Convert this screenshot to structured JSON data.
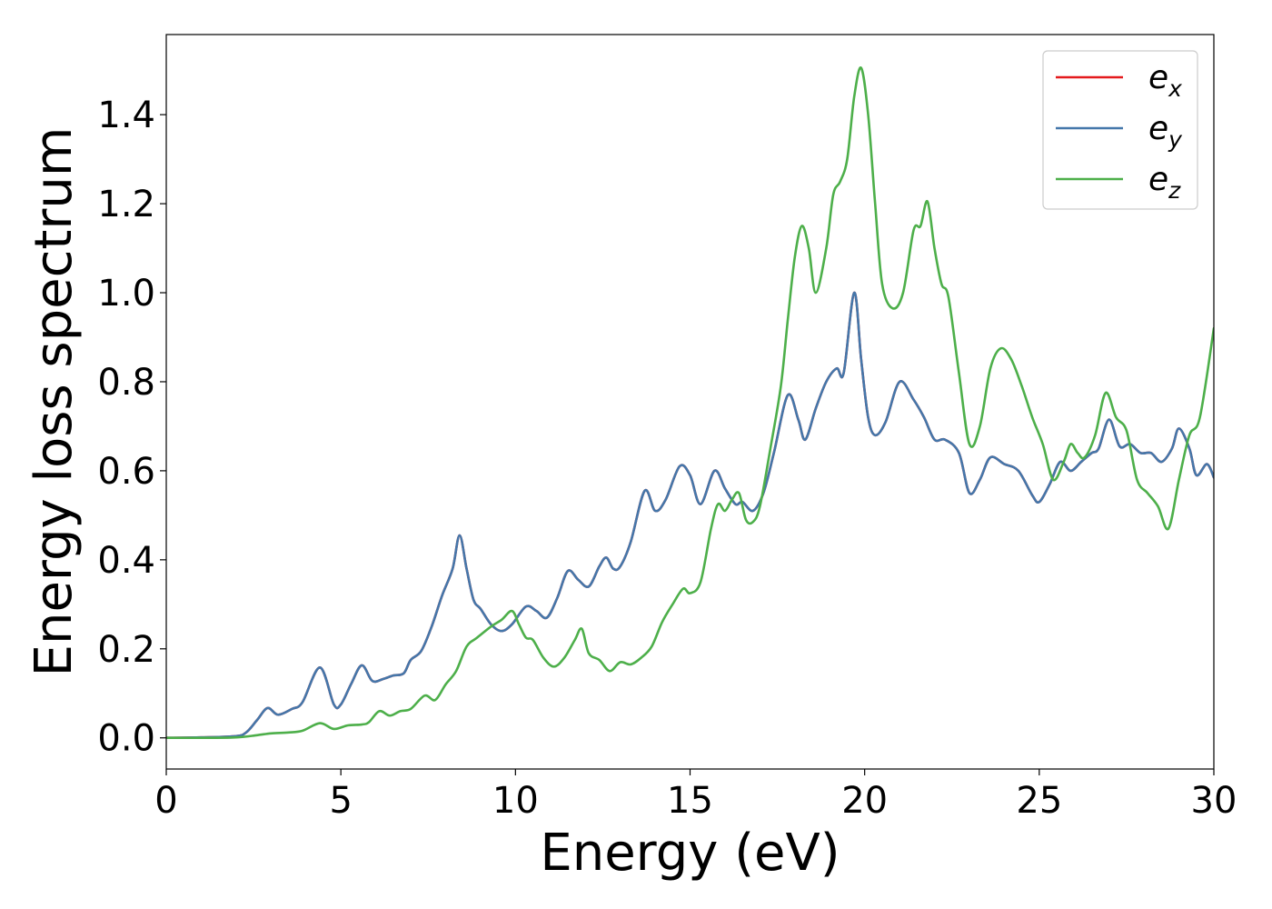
{
  "chart_data": {
    "type": "line",
    "title": "",
    "xlabel": "Energy (eV)",
    "ylabel": "Energy loss spectrum",
    "xlim": [
      0,
      30
    ],
    "ylim": [
      -0.07,
      1.58
    ],
    "xticks": [
      0,
      5,
      10,
      15,
      20,
      25,
      30
    ],
    "xtick_labels": [
      "0",
      "5",
      "10",
      "15",
      "20",
      "25",
      "30"
    ],
    "yticks": [
      0.0,
      0.2,
      0.4,
      0.6,
      0.8,
      1.0,
      1.2,
      1.4
    ],
    "ytick_labels": [
      "0.0",
      "0.2",
      "0.4",
      "0.6",
      "0.8",
      "1.0",
      "1.2",
      "1.4"
    ],
    "grid": false,
    "legend_position": "top-right",
    "series": [
      {
        "name": "e_x",
        "legend_base": "e",
        "legend_sub": "x",
        "color": "#e41a1c",
        "x": [
          0,
          1,
          2,
          2.3,
          2.6,
          2.9,
          3.2,
          3.6,
          3.9,
          4.4,
          4.8,
          5.0,
          5.3,
          5.6,
          5.9,
          6.2,
          6.5,
          6.8,
          7.0,
          7.3,
          7.6,
          7.9,
          8.2,
          8.4,
          8.6,
          8.8,
          9.0,
          9.3,
          9.6,
          9.9,
          10.3,
          10.6,
          10.9,
          11.2,
          11.5,
          11.8,
          12.1,
          12.4,
          12.6,
          12.8,
          13.0,
          13.3,
          13.7,
          14.0,
          14.3,
          14.7,
          15.0,
          15.3,
          15.7,
          16.0,
          16.3,
          16.5,
          16.8,
          17.1,
          17.4,
          17.8,
          18.1,
          18.3,
          18.6,
          18.9,
          19.2,
          19.4,
          19.7,
          19.9,
          20.1,
          20.3,
          20.6,
          21.0,
          21.4,
          21.7,
          22.0,
          22.3,
          22.7,
          23.0,
          23.3,
          23.6,
          24.0,
          24.4,
          24.8,
          25.0,
          25.3,
          25.6,
          25.9,
          26.2,
          26.5,
          26.7,
          27.0,
          27.3,
          27.6,
          27.9,
          28.2,
          28.5,
          28.8,
          29.0,
          29.3,
          29.5,
          29.8,
          30.0
        ],
        "y": [
          0.0,
          0.001,
          0.004,
          0.013,
          0.04,
          0.067,
          0.052,
          0.065,
          0.08,
          0.158,
          0.075,
          0.075,
          0.122,
          0.163,
          0.128,
          0.132,
          0.14,
          0.145,
          0.175,
          0.195,
          0.25,
          0.32,
          0.38,
          0.455,
          0.38,
          0.31,
          0.29,
          0.255,
          0.24,
          0.255,
          0.295,
          0.285,
          0.27,
          0.315,
          0.375,
          0.355,
          0.34,
          0.385,
          0.405,
          0.38,
          0.385,
          0.44,
          0.555,
          0.51,
          0.535,
          0.61,
          0.59,
          0.525,
          0.6,
          0.56,
          0.525,
          0.53,
          0.51,
          0.55,
          0.64,
          0.77,
          0.715,
          0.67,
          0.74,
          0.8,
          0.83,
          0.82,
          1.0,
          0.85,
          0.72,
          0.68,
          0.71,
          0.8,
          0.76,
          0.72,
          0.67,
          0.67,
          0.64,
          0.55,
          0.58,
          0.63,
          0.615,
          0.6,
          0.545,
          0.53,
          0.57,
          0.62,
          0.6,
          0.62,
          0.64,
          0.65,
          0.715,
          0.655,
          0.66,
          0.64,
          0.64,
          0.62,
          0.65,
          0.695,
          0.65,
          0.59,
          0.615,
          0.585
        ]
      },
      {
        "name": "e_y",
        "legend_base": "e",
        "legend_sub": "y",
        "color": "#4477aa",
        "x": [
          0,
          1,
          2,
          2.3,
          2.6,
          2.9,
          3.2,
          3.6,
          3.9,
          4.4,
          4.8,
          5.0,
          5.3,
          5.6,
          5.9,
          6.2,
          6.5,
          6.8,
          7.0,
          7.3,
          7.6,
          7.9,
          8.2,
          8.4,
          8.6,
          8.8,
          9.0,
          9.3,
          9.6,
          9.9,
          10.3,
          10.6,
          10.9,
          11.2,
          11.5,
          11.8,
          12.1,
          12.4,
          12.6,
          12.8,
          13.0,
          13.3,
          13.7,
          14.0,
          14.3,
          14.7,
          15.0,
          15.3,
          15.7,
          16.0,
          16.3,
          16.5,
          16.8,
          17.1,
          17.4,
          17.8,
          18.1,
          18.3,
          18.6,
          18.9,
          19.2,
          19.4,
          19.7,
          19.9,
          20.1,
          20.3,
          20.6,
          21.0,
          21.4,
          21.7,
          22.0,
          22.3,
          22.7,
          23.0,
          23.3,
          23.6,
          24.0,
          24.4,
          24.8,
          25.0,
          25.3,
          25.6,
          25.9,
          26.2,
          26.5,
          26.7,
          27.0,
          27.3,
          27.6,
          27.9,
          28.2,
          28.5,
          28.8,
          29.0,
          29.3,
          29.5,
          29.8,
          30.0
        ],
        "y": [
          0.0,
          0.001,
          0.004,
          0.013,
          0.04,
          0.067,
          0.052,
          0.065,
          0.08,
          0.158,
          0.075,
          0.075,
          0.122,
          0.163,
          0.128,
          0.132,
          0.14,
          0.145,
          0.175,
          0.195,
          0.25,
          0.32,
          0.38,
          0.455,
          0.38,
          0.31,
          0.29,
          0.255,
          0.24,
          0.255,
          0.295,
          0.285,
          0.27,
          0.315,
          0.375,
          0.355,
          0.34,
          0.385,
          0.405,
          0.38,
          0.385,
          0.44,
          0.555,
          0.51,
          0.535,
          0.61,
          0.59,
          0.525,
          0.6,
          0.56,
          0.525,
          0.53,
          0.51,
          0.55,
          0.64,
          0.77,
          0.715,
          0.67,
          0.74,
          0.8,
          0.83,
          0.82,
          1.0,
          0.85,
          0.72,
          0.68,
          0.71,
          0.8,
          0.76,
          0.72,
          0.67,
          0.67,
          0.64,
          0.55,
          0.58,
          0.63,
          0.615,
          0.6,
          0.545,
          0.53,
          0.57,
          0.62,
          0.6,
          0.62,
          0.64,
          0.65,
          0.715,
          0.655,
          0.66,
          0.64,
          0.64,
          0.62,
          0.65,
          0.695,
          0.65,
          0.59,
          0.615,
          0.585
        ]
      },
      {
        "name": "e_z",
        "legend_base": "e",
        "legend_sub": "z",
        "color": "#4daf4a",
        "x": [
          0,
          1,
          2,
          2.6,
          3.0,
          3.5,
          3.9,
          4.4,
          4.8,
          5.2,
          5.6,
          5.8,
          6.1,
          6.4,
          6.7,
          7.0,
          7.4,
          7.7,
          8.0,
          8.3,
          8.6,
          8.9,
          9.3,
          9.6,
          9.9,
          10.1,
          10.3,
          10.5,
          10.8,
          11.1,
          11.4,
          11.7,
          11.9,
          12.1,
          12.4,
          12.7,
          13.0,
          13.3,
          13.6,
          13.9,
          14.2,
          14.5,
          14.8,
          15.0,
          15.3,
          15.6,
          15.8,
          16.0,
          16.2,
          16.4,
          16.6,
          16.8,
          17.0,
          17.3,
          17.6,
          17.8,
          18.0,
          18.2,
          18.4,
          18.6,
          18.9,
          19.1,
          19.3,
          19.5,
          19.7,
          19.9,
          20.1,
          20.3,
          20.5,
          20.8,
          21.1,
          21.4,
          21.6,
          21.8,
          22.0,
          22.2,
          22.4,
          22.7,
          23.0,
          23.3,
          23.6,
          23.9,
          24.2,
          24.5,
          24.8,
          25.1,
          25.4,
          25.7,
          25.9,
          26.1,
          26.3,
          26.6,
          26.9,
          27.2,
          27.5,
          27.8,
          28.1,
          28.4,
          28.7,
          29.0,
          29.3,
          29.6,
          30.0
        ],
        "y": [
          0.0,
          0.0,
          0.001,
          0.006,
          0.01,
          0.012,
          0.016,
          0.033,
          0.02,
          0.028,
          0.03,
          0.035,
          0.06,
          0.05,
          0.06,
          0.065,
          0.095,
          0.085,
          0.12,
          0.15,
          0.205,
          0.225,
          0.25,
          0.265,
          0.285,
          0.255,
          0.225,
          0.22,
          0.18,
          0.16,
          0.18,
          0.22,
          0.245,
          0.19,
          0.175,
          0.15,
          0.17,
          0.165,
          0.18,
          0.205,
          0.26,
          0.3,
          0.335,
          0.325,
          0.35,
          0.47,
          0.525,
          0.51,
          0.535,
          0.55,
          0.49,
          0.485,
          0.52,
          0.65,
          0.79,
          0.94,
          1.08,
          1.15,
          1.1,
          1.0,
          1.1,
          1.22,
          1.25,
          1.3,
          1.44,
          1.505,
          1.4,
          1.2,
          1.02,
          0.965,
          1.0,
          1.14,
          1.15,
          1.205,
          1.1,
          1.02,
          0.99,
          0.82,
          0.66,
          0.7,
          0.83,
          0.875,
          0.85,
          0.79,
          0.72,
          0.66,
          0.58,
          0.62,
          0.66,
          0.64,
          0.63,
          0.68,
          0.775,
          0.72,
          0.69,
          0.58,
          0.55,
          0.52,
          0.47,
          0.58,
          0.68,
          0.72,
          0.92
        ]
      }
    ]
  }
}
